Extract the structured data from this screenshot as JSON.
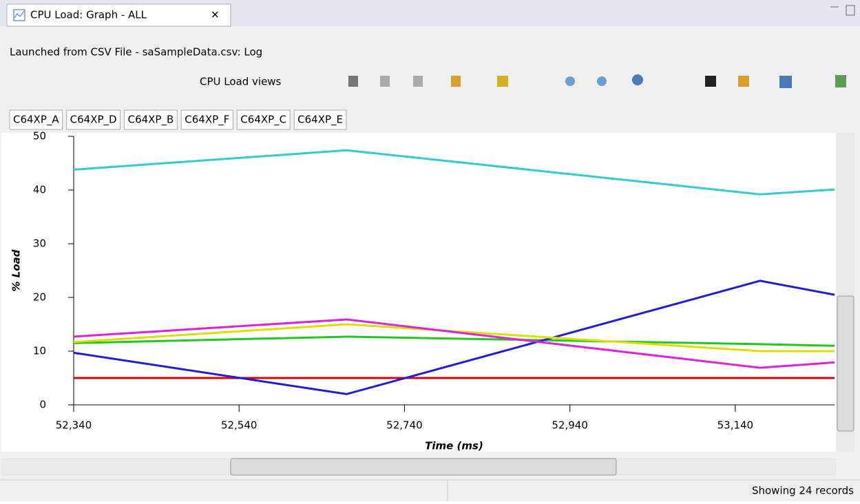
{
  "tab_title": "CPU Load: Graph - ALL",
  "subtitle": "Launched from CSV File - saSampleData.csv: Log",
  "toolbar_label": "CPU Load views",
  "status": "Showing 24 records",
  "chart_data": {
    "type": "line",
    "y_label": "% Load",
    "x_label": "Time  (ms)",
    "x": [
      52340,
      52670,
      53170,
      53260
    ],
    "series": [
      {
        "name": "C64XP_A",
        "color": "#dd0000",
        "values": [
          5.0,
          5.0,
          5.0,
          5.0
        ]
      },
      {
        "name": "C64XP_D",
        "color": "#22c822",
        "values": [
          11.5,
          12.7,
          11.3,
          11.0
        ]
      },
      {
        "name": "C64XP_B",
        "color": "#1e1ed8",
        "values": [
          9.7,
          2.0,
          23.1,
          20.5
        ]
      },
      {
        "name": "C64XP_F",
        "color": "#dede00",
        "values": [
          11.7,
          15.0,
          10.0,
          10.0
        ]
      },
      {
        "name": "C64XP_C",
        "color": "#dd22dd",
        "values": [
          12.7,
          15.9,
          6.9,
          7.9
        ]
      },
      {
        "name": "C64XP_E",
        "color": "#33cccc",
        "values": [
          43.8,
          47.4,
          39.2,
          40.1
        ]
      }
    ],
    "xlim": [
      52340,
      53260
    ],
    "ylim": [
      0,
      50
    ],
    "xticks": [
      {
        "value": 52340,
        "label": "52,340"
      },
      {
        "value": 52540,
        "label": "52,540"
      },
      {
        "value": 52740,
        "label": "52,740"
      },
      {
        "value": 52940,
        "label": "52,940"
      },
      {
        "value": 53140,
        "label": "53,140"
      }
    ],
    "yticks": [
      0,
      10,
      20,
      30,
      40,
      50
    ]
  }
}
